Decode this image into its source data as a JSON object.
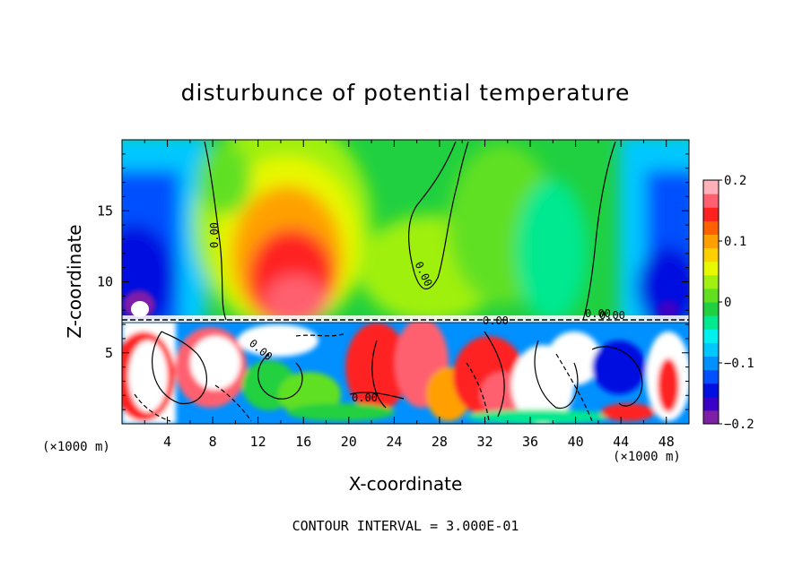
{
  "chart_data": {
    "type": "heatmap",
    "title": "disturbunce of potential temperature",
    "xlabel": "X-coordinate",
    "ylabel": "Z-coordinate",
    "x_unit_left": "(×1000 m)",
    "x_unit_right": "(×1000 m)",
    "footer": "CONTOUR INTERVAL = 3.000E-01",
    "xlim": [
      0,
      50
    ],
    "ylim": [
      0,
      20
    ],
    "x_ticks": [
      4,
      8,
      12,
      16,
      20,
      24,
      28,
      32,
      36,
      40,
      44,
      48
    ],
    "y_ticks": [
      5,
      10,
      15
    ],
    "colorbar": {
      "range": [
        -0.2,
        0.2
      ],
      "ticks": [
        0.2,
        0.1,
        0,
        -0.1,
        -0.2
      ],
      "tick_labels": [
        "0.2",
        "0.1",
        "0",
        "−0.1",
        "−0.2"
      ],
      "colors": [
        "#7f1fa8",
        "#3a00c8",
        "#0010e0",
        "#0050ff",
        "#0090ff",
        "#00c8ff",
        "#00f0f0",
        "#00e890",
        "#20d040",
        "#60e020",
        "#a0f010",
        "#e8f800",
        "#ffd000",
        "#ffa000",
        "#ff6000",
        "#ff2020",
        "#ff6070",
        "#ffb0b8"
      ]
    },
    "contour_labels": [
      "0.00",
      "0.00",
      "0.00",
      "0.00",
      "0.00",
      "0.00",
      "0.00"
    ]
  }
}
